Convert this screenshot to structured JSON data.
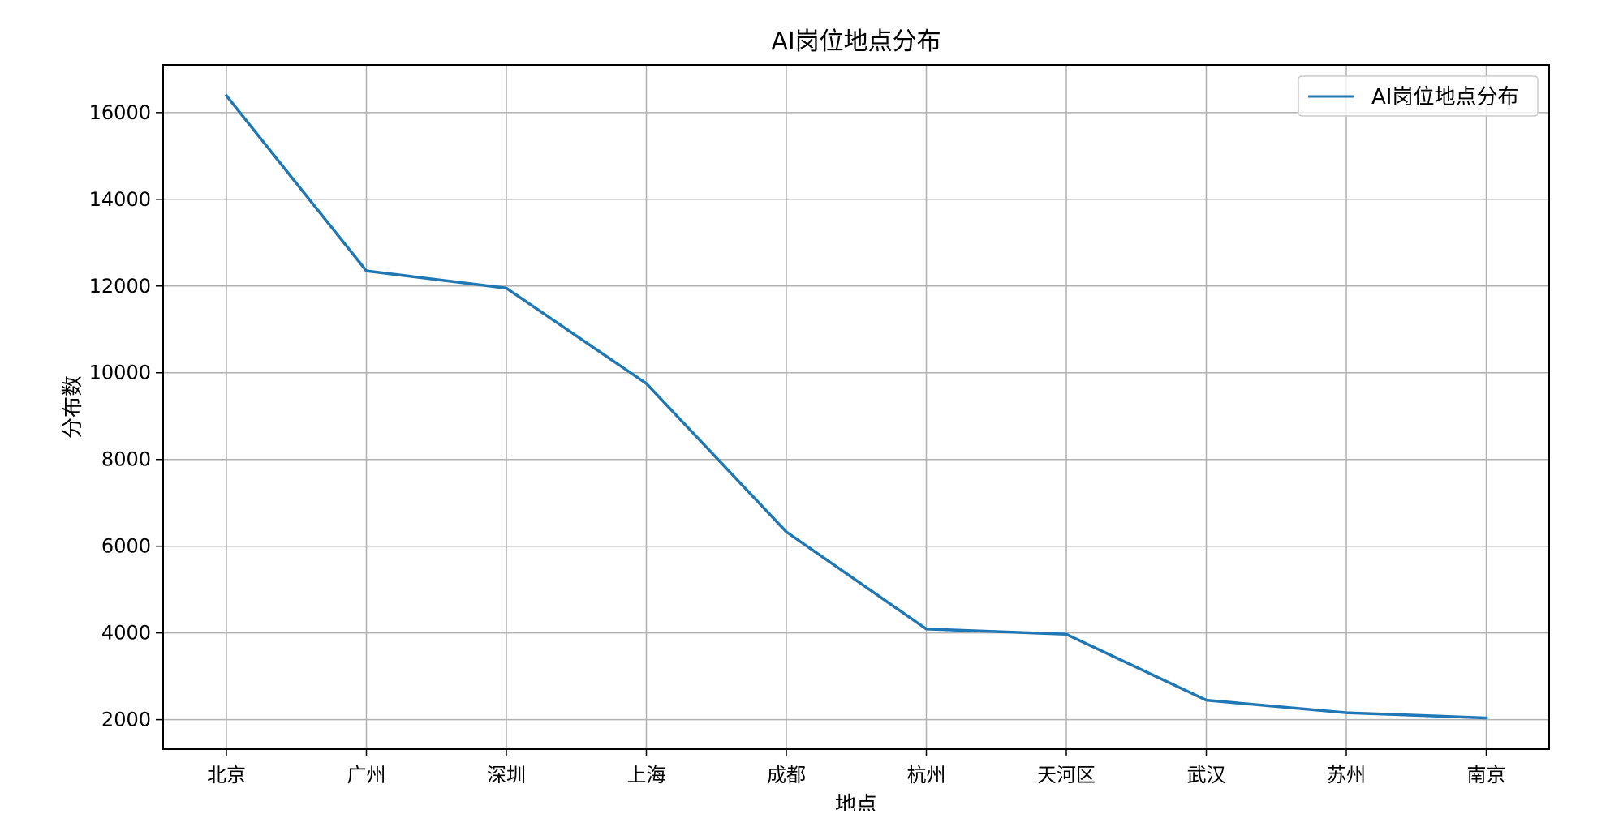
{
  "chart_data": {
    "type": "line",
    "title": "AI岗位地点分布",
    "xlabel": "地点",
    "ylabel": "分布数",
    "categories": [
      "北京",
      "广州",
      "深圳",
      "上海",
      "成都",
      "杭州",
      "天河区",
      "武汉",
      "苏州",
      "南京"
    ],
    "series": [
      {
        "name": "AI岗位地点分布",
        "values": [
          16390,
          12350,
          11950,
          9750,
          6330,
          4090,
          3970,
          2450,
          2160,
          2040
        ],
        "color": "#1f77b4"
      }
    ],
    "ylim": [
      1320,
      17100
    ],
    "yticks": [
      2000,
      4000,
      6000,
      8000,
      10000,
      12000,
      14000,
      16000
    ],
    "grid": true,
    "legend": "top-right"
  }
}
